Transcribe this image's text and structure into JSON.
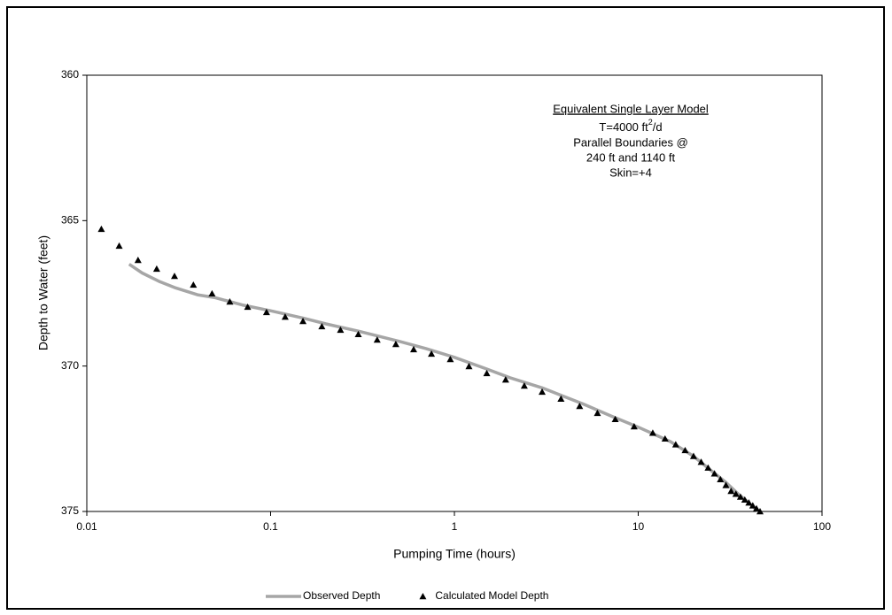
{
  "chart_data": {
    "type": "scatter-line",
    "x_label": "Pumping Time (hours)",
    "y_label": "Depth to Water (feet)",
    "xscale": "log",
    "xlim": [
      0.01,
      100
    ],
    "xticks": [
      0.01,
      0.1,
      1,
      10,
      100
    ],
    "ylim": [
      375,
      360
    ],
    "yticks": [
      360,
      365,
      370,
      375
    ],
    "grid": false,
    "legend": "bottom",
    "annotation": {
      "heading": "Equivalent Single Layer Model",
      "formula": [
        "T=4000 ft",
        "2",
        "/d"
      ],
      "lines": [
        "Parallel Boundaries @",
        "240 ft and 1140 ft",
        "Skin=+4"
      ]
    },
    "series": [
      {
        "name": "Observed Depth",
        "style": "line",
        "color": "#a6a6a6",
        "x": [
          0.017,
          0.02,
          0.025,
          0.03,
          0.04,
          0.05,
          0.07,
          0.1,
          0.15,
          0.2,
          0.3,
          0.5,
          0.7,
          1,
          1.5,
          2,
          3,
          5,
          7,
          10,
          15,
          20,
          25,
          30,
          35,
          40,
          45
        ],
        "values": [
          366.5,
          366.8,
          367.1,
          367.3,
          367.55,
          367.65,
          367.9,
          368.1,
          368.35,
          368.55,
          368.8,
          369.15,
          369.4,
          369.7,
          370.1,
          370.4,
          370.75,
          371.3,
          371.7,
          372.1,
          372.6,
          373.1,
          373.6,
          374.0,
          374.4,
          374.7,
          375.0
        ]
      },
      {
        "name": "Calculated Model Depth",
        "style": "triangle",
        "color": "#000000",
        "x": [
          0.012,
          0.015,
          0.019,
          0.024,
          0.03,
          0.038,
          0.048,
          0.06,
          0.075,
          0.095,
          0.12,
          0.15,
          0.19,
          0.24,
          0.3,
          0.38,
          0.48,
          0.6,
          0.75,
          0.95,
          1.2,
          1.5,
          1.9,
          2.4,
          3.0,
          3.8,
          4.8,
          6.0,
          7.5,
          9.5,
          12,
          14,
          16,
          18,
          20,
          22,
          24,
          26,
          28,
          30,
          32,
          34,
          36,
          38,
          40,
          42,
          44,
          46
        ],
        "values": [
          365.29,
          365.87,
          366.36,
          366.66,
          366.91,
          367.21,
          367.51,
          367.79,
          367.97,
          368.15,
          368.31,
          368.46,
          368.64,
          368.76,
          368.91,
          369.1,
          369.25,
          369.43,
          369.58,
          369.77,
          370.01,
          370.25,
          370.47,
          370.68,
          370.89,
          371.13,
          371.38,
          371.62,
          371.83,
          372.08,
          372.3,
          372.5,
          372.7,
          372.9,
          373.1,
          373.3,
          373.5,
          373.7,
          373.9,
          374.1,
          374.3,
          374.4,
          374.5,
          374.6,
          374.7,
          374.8,
          374.9,
          375.0
        ]
      }
    ]
  }
}
